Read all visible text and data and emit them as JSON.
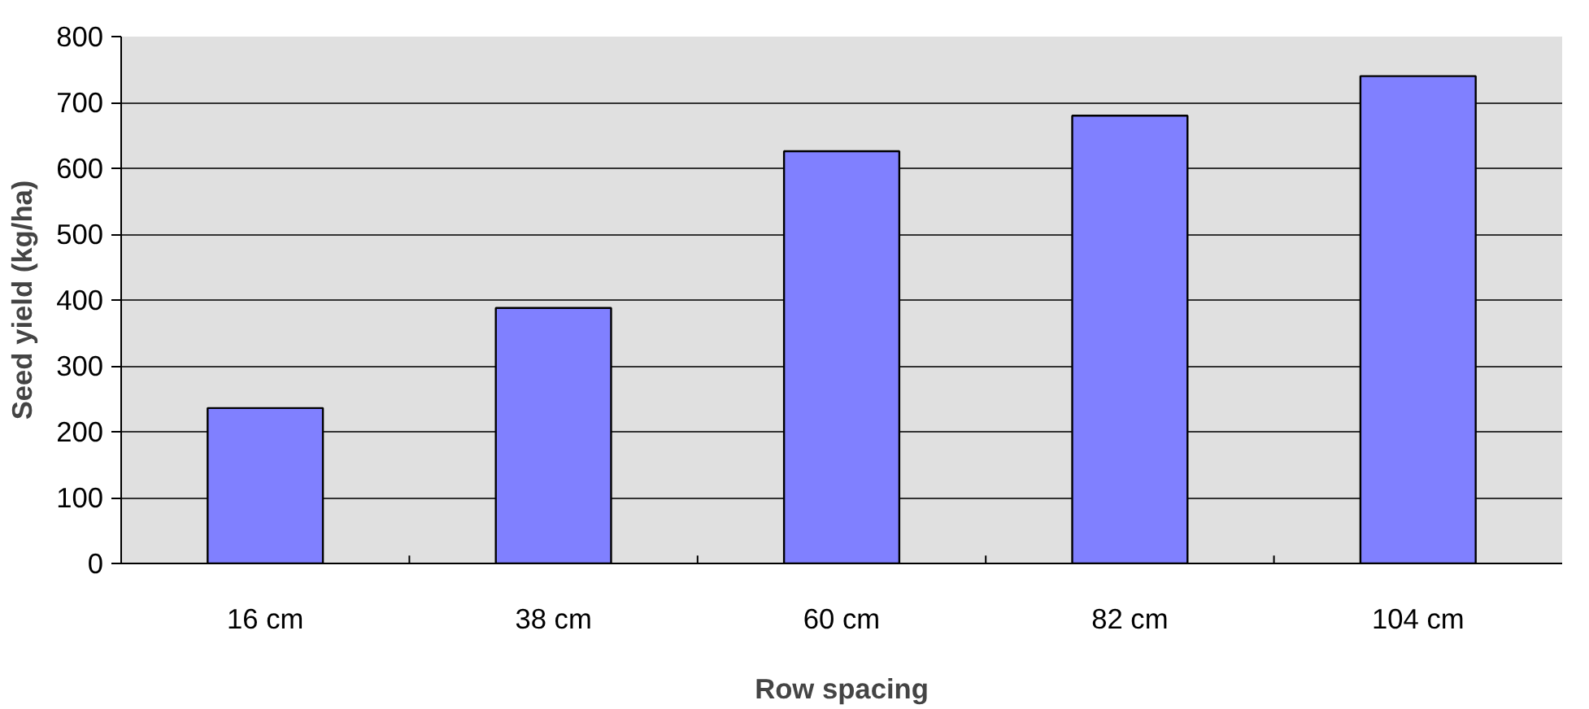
{
  "chart_data": {
    "type": "bar",
    "xlabel": "Row spacing",
    "ylabel": "Seed yield (kg/ha)",
    "categories": [
      "16 cm",
      "38 cm",
      "60 cm",
      "82 cm",
      "104 cm"
    ],
    "values": [
      236,
      388,
      626,
      680,
      740
    ],
    "color": "#8080ff",
    "ylim": [
      0,
      800
    ],
    "yticks": [
      0,
      100,
      200,
      300,
      400,
      500,
      600,
      700,
      800
    ],
    "grid": "y"
  }
}
